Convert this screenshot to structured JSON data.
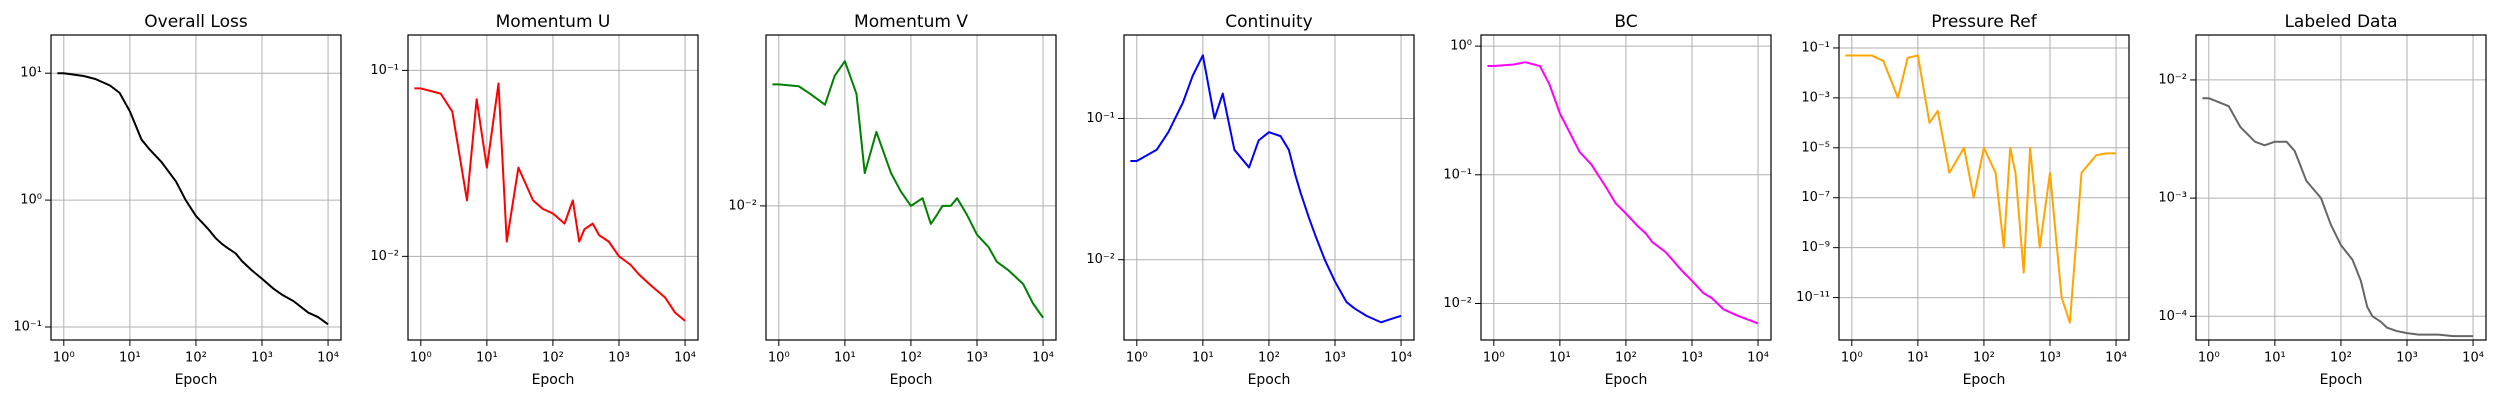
{
  "chart_data": [
    {
      "type": "line",
      "title": "Overall Loss",
      "xlabel": "Epoch",
      "log_x": true,
      "log_y": true,
      "grid": true,
      "color": "#000000",
      "x": [
        0.8,
        1,
        2,
        3,
        5,
        7,
        10,
        15,
        20,
        30,
        50,
        70,
        100,
        150,
        200,
        250,
        300,
        400,
        500,
        700,
        1000,
        1500,
        2000,
        3000,
        5000,
        7000,
        10000
      ],
      "values": [
        10,
        10,
        9.5,
        9,
        8,
        7,
        5,
        3,
        2.5,
        2,
        1.4,
        1.0,
        0.75,
        0.6,
        0.5,
        0.45,
        0.42,
        0.38,
        0.33,
        0.28,
        0.24,
        0.2,
        0.18,
        0.16,
        0.13,
        0.12,
        0.105
      ],
      "xlim": [
        0.64,
        15700
      ],
      "ylim": [
        0.079,
        20
      ],
      "xticks": [
        {
          "value": 1,
          "label": "10⁰"
        },
        {
          "value": 10,
          "label": "10¹"
        },
        {
          "value": 100,
          "label": "10²"
        },
        {
          "value": 1000,
          "label": "10³"
        },
        {
          "value": 10000,
          "label": "10⁴"
        }
      ],
      "yticks": [
        {
          "value": 0.1,
          "label": "10⁻¹"
        },
        {
          "value": 1,
          "label": "10⁰"
        },
        {
          "value": 10,
          "label": "10¹"
        }
      ]
    },
    {
      "type": "line",
      "title": "Momentum U",
      "xlabel": "Epoch",
      "log_x": true,
      "log_y": true,
      "grid": true,
      "color": "#ff0000",
      "x": [
        0.8,
        1,
        2,
        3,
        5,
        7,
        10,
        15,
        20,
        30,
        50,
        70,
        100,
        150,
        200,
        250,
        300,
        400,
        500,
        700,
        1000,
        1500,
        2000,
        3000,
        5000,
        7000,
        10000
      ],
      "values": [
        0.08,
        0.08,
        0.075,
        0.06,
        0.02,
        0.07,
        0.03,
        0.085,
        0.012,
        0.03,
        0.02,
        0.018,
        0.017,
        0.015,
        0.02,
        0.012,
        0.014,
        0.015,
        0.013,
        0.012,
        0.01,
        0.009,
        0.008,
        0.007,
        0.006,
        0.005,
        0.0045
      ],
      "xlim": [
        0.64,
        15700
      ],
      "ylim": [
        0.00355,
        0.155
      ],
      "xticks": [
        {
          "value": 1,
          "label": "10⁰"
        },
        {
          "value": 10,
          "label": "10¹"
        },
        {
          "value": 100,
          "label": "10²"
        },
        {
          "value": 1000,
          "label": "10³"
        },
        {
          "value": 10000,
          "label": "10⁴"
        }
      ],
      "yticks": [
        {
          "value": 0.01,
          "label": "10⁻²"
        },
        {
          "value": 0.1,
          "label": "10⁻¹"
        }
      ]
    },
    {
      "type": "line",
      "title": "Momentum V",
      "xlabel": "Epoch",
      "log_x": true,
      "log_y": true,
      "grid": true,
      "color": "#008000",
      "x": [
        0.8,
        1,
        2,
        3,
        5,
        7,
        10,
        15,
        20,
        30,
        50,
        70,
        100,
        150,
        200,
        250,
        300,
        400,
        500,
        700,
        1000,
        1500,
        2000,
        3000,
        5000,
        7000,
        10000
      ],
      "values": [
        0.045,
        0.045,
        0.044,
        0.04,
        0.035,
        0.05,
        0.06,
        0.04,
        0.015,
        0.025,
        0.015,
        0.012,
        0.01,
        0.011,
        0.008,
        0.009,
        0.01,
        0.01,
        0.011,
        0.009,
        0.007,
        0.006,
        0.005,
        0.0045,
        0.0038,
        0.003,
        0.0025
      ],
      "xlim": [
        0.64,
        15700
      ],
      "ylim": [
        0.0019,
        0.083
      ],
      "xticks": [
        {
          "value": 1,
          "label": "10⁰"
        },
        {
          "value": 10,
          "label": "10¹"
        },
        {
          "value": 100,
          "label": "10²"
        },
        {
          "value": 1000,
          "label": "10³"
        },
        {
          "value": 10000,
          "label": "10⁴"
        }
      ],
      "yticks": [
        {
          "value": 0.01,
          "label": "10⁻²"
        }
      ]
    },
    {
      "type": "line",
      "title": "Continuity",
      "xlabel": "Epoch",
      "log_x": true,
      "log_y": true,
      "grid": true,
      "color": "#0000ff",
      "x": [
        0.8,
        1,
        2,
        3,
        5,
        7,
        10,
        15,
        20,
        30,
        50,
        70,
        100,
        150,
        200,
        250,
        300,
        400,
        500,
        700,
        1000,
        1500,
        2000,
        3000,
        5000,
        7000,
        10000
      ],
      "values": [
        0.05,
        0.05,
        0.06,
        0.08,
        0.13,
        0.2,
        0.28,
        0.1,
        0.15,
        0.06,
        0.045,
        0.07,
        0.08,
        0.075,
        0.06,
        0.04,
        0.03,
        0.02,
        0.015,
        0.01,
        0.007,
        0.005,
        0.0045,
        0.004,
        0.0036,
        0.0038,
        0.004
      ],
      "xlim": [
        0.64,
        15700
      ],
      "ylim": [
        0.0027,
        0.39
      ],
      "xticks": [
        {
          "value": 1,
          "label": "10⁰"
        },
        {
          "value": 10,
          "label": "10¹"
        },
        {
          "value": 100,
          "label": "10²"
        },
        {
          "value": 1000,
          "label": "10³"
        },
        {
          "value": 10000,
          "label": "10⁴"
        }
      ],
      "yticks": [
        {
          "value": 0.01,
          "label": "10⁻²"
        },
        {
          "value": 0.1,
          "label": "10⁻¹"
        }
      ]
    },
    {
      "type": "line",
      "title": "BC",
      "xlabel": "Epoch",
      "log_x": true,
      "log_y": true,
      "grid": true,
      "color": "#ff00ff",
      "x": [
        0.8,
        1,
        2,
        3,
        5,
        7,
        10,
        15,
        20,
        30,
        50,
        70,
        100,
        150,
        200,
        250,
        300,
        400,
        500,
        700,
        1000,
        1500,
        2000,
        3000,
        5000,
        7000,
        10000
      ],
      "values": [
        0.7,
        0.7,
        0.72,
        0.75,
        0.7,
        0.5,
        0.3,
        0.2,
        0.15,
        0.12,
        0.08,
        0.06,
        0.05,
        0.04,
        0.035,
        0.03,
        0.028,
        0.025,
        0.022,
        0.018,
        0.015,
        0.012,
        0.011,
        0.009,
        0.008,
        0.0075,
        0.007
      ],
      "xlim": [
        0.64,
        15700
      ],
      "ylim": [
        0.0052,
        1.22
      ],
      "xticks": [
        {
          "value": 1,
          "label": "10⁰"
        },
        {
          "value": 10,
          "label": "10¹"
        },
        {
          "value": 100,
          "label": "10²"
        },
        {
          "value": 1000,
          "label": "10³"
        },
        {
          "value": 10000,
          "label": "10⁴"
        }
      ],
      "yticks": [
        {
          "value": 0.01,
          "label": "10⁻²"
        },
        {
          "value": 0.1,
          "label": "10⁻¹"
        },
        {
          "value": 1,
          "label": "10⁰"
        }
      ]
    },
    {
      "type": "line",
      "title": "Pressure Ref",
      "xlabel": "Epoch",
      "log_x": true,
      "log_y": true,
      "grid": true,
      "color": "#ffa500",
      "x": [
        0.8,
        1,
        2,
        3,
        5,
        7,
        10,
        15,
        20,
        30,
        50,
        70,
        100,
        150,
        200,
        250,
        300,
        400,
        500,
        700,
        1000,
        1500,
        2000,
        3000,
        5000,
        7000,
        10000
      ],
      "values": [
        0.05,
        0.05,
        0.05,
        0.03,
        0.001,
        0.04,
        0.05,
        0.0001,
        0.0003,
        1e-06,
        1e-05,
        1e-07,
        1e-05,
        1e-06,
        1e-09,
        1e-05,
        1e-06,
        1e-10,
        1e-05,
        1e-09,
        1e-06,
        1e-11,
        1e-12,
        1e-06,
        5e-06,
        6e-06,
        6e-06
      ],
      "xlim": [
        0.64,
        15700
      ],
      "ylim": [
        2e-13,
        0.33
      ],
      "xticks": [
        {
          "value": 1,
          "label": "10⁰"
        },
        {
          "value": 10,
          "label": "10¹"
        },
        {
          "value": 100,
          "label": "10²"
        },
        {
          "value": 1000,
          "label": "10³"
        },
        {
          "value": 10000,
          "label": "10⁴"
        }
      ],
      "yticks": [
        {
          "value": 1e-11,
          "label": "10⁻¹¹"
        },
        {
          "value": 1e-09,
          "label": "10⁻⁹"
        },
        {
          "value": 1e-07,
          "label": "10⁻⁷"
        },
        {
          "value": 1e-05,
          "label": "10⁻⁵"
        },
        {
          "value": 0.001,
          "label": "10⁻³"
        },
        {
          "value": 0.1,
          "label": "10⁻¹"
        }
      ]
    },
    {
      "type": "line",
      "title": "Labeled Data",
      "xlabel": "Epoch",
      "log_x": true,
      "log_y": true,
      "grid": true,
      "color": "#666666",
      "x": [
        0.8,
        1,
        2,
        3,
        5,
        7,
        10,
        15,
        20,
        30,
        50,
        70,
        100,
        150,
        200,
        250,
        300,
        400,
        500,
        700,
        1000,
        1500,
        2000,
        3000,
        5000,
        7000,
        10000
      ],
      "values": [
        0.007,
        0.007,
        0.006,
        0.004,
        0.003,
        0.0028,
        0.003,
        0.003,
        0.0025,
        0.0014,
        0.001,
        0.0006,
        0.0004,
        0.0003,
        0.0002,
        0.00012,
        0.0001,
        9e-05,
        8e-05,
        7.5e-05,
        7.2e-05,
        7e-05,
        7e-05,
        7e-05,
        6.8e-05,
        6.8e-05,
        6.8e-05
      ],
      "xlim": [
        0.64,
        15700
      ],
      "ylim": [
        6.3e-05,
        0.024
      ],
      "xticks": [
        {
          "value": 1,
          "label": "10⁰"
        },
        {
          "value": 10,
          "label": "10¹"
        },
        {
          "value": 100,
          "label": "10²"
        },
        {
          "value": 1000,
          "label": "10³"
        },
        {
          "value": 10000,
          "label": "10⁴"
        }
      ],
      "yticks": [
        {
          "value": 0.0001,
          "label": "10⁻⁴"
        },
        {
          "value": 0.001,
          "label": "10⁻³"
        },
        {
          "value": 0.01,
          "label": "10⁻²"
        }
      ]
    }
  ]
}
